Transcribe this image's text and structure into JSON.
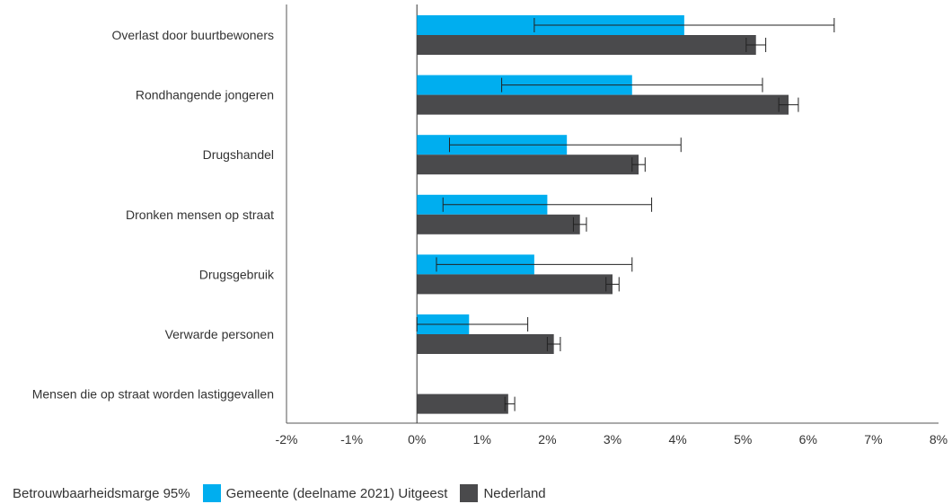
{
  "chart_data": {
    "type": "bar",
    "orientation": "horizontal",
    "categories": [
      "Overlast door buurtbewoners",
      "Rondhangende jongeren",
      "Drugshandel",
      "Dronken mensen op straat",
      "Drugsgebruik",
      "Verwarde personen",
      "Mensen die op straat worden lastiggevallen"
    ],
    "series": [
      {
        "name": "Gemeente (deelname 2021) Uitgeest",
        "color": "#00aeef",
        "values": [
          4.1,
          3.3,
          2.3,
          2.0,
          1.8,
          0.8,
          null
        ],
        "ci_low": [
          1.8,
          1.3,
          0.5,
          0.4,
          0.3,
          0.0,
          null
        ],
        "ci_high": [
          6.4,
          5.3,
          4.05,
          3.6,
          3.3,
          1.7,
          null
        ]
      },
      {
        "name": "Nederland",
        "color": "#4a4a4c",
        "values": [
          5.2,
          5.7,
          3.4,
          2.5,
          3.0,
          2.1,
          1.4
        ],
        "ci_low": [
          5.05,
          5.55,
          3.3,
          2.4,
          2.9,
          2.0,
          1.35
        ],
        "ci_high": [
          5.35,
          5.85,
          3.5,
          2.6,
          3.1,
          2.2,
          1.5
        ]
      }
    ],
    "xlim": [
      -2,
      8
    ],
    "xticks": [
      -2,
      -1,
      0,
      1,
      2,
      3,
      4,
      5,
      6,
      7,
      8
    ],
    "xtick_labels": [
      "-2%",
      "-1%",
      "0%",
      "1%",
      "2%",
      "3%",
      "4%",
      "5%",
      "6%",
      "7%",
      "8%"
    ],
    "grid": false,
    "legend": {
      "position": "bottom-left",
      "title": "Betrouwbaarheidsmarge 95%",
      "entries": [
        "Gemeente (deelname 2021) Uitgeest",
        "Nederland"
      ]
    }
  }
}
